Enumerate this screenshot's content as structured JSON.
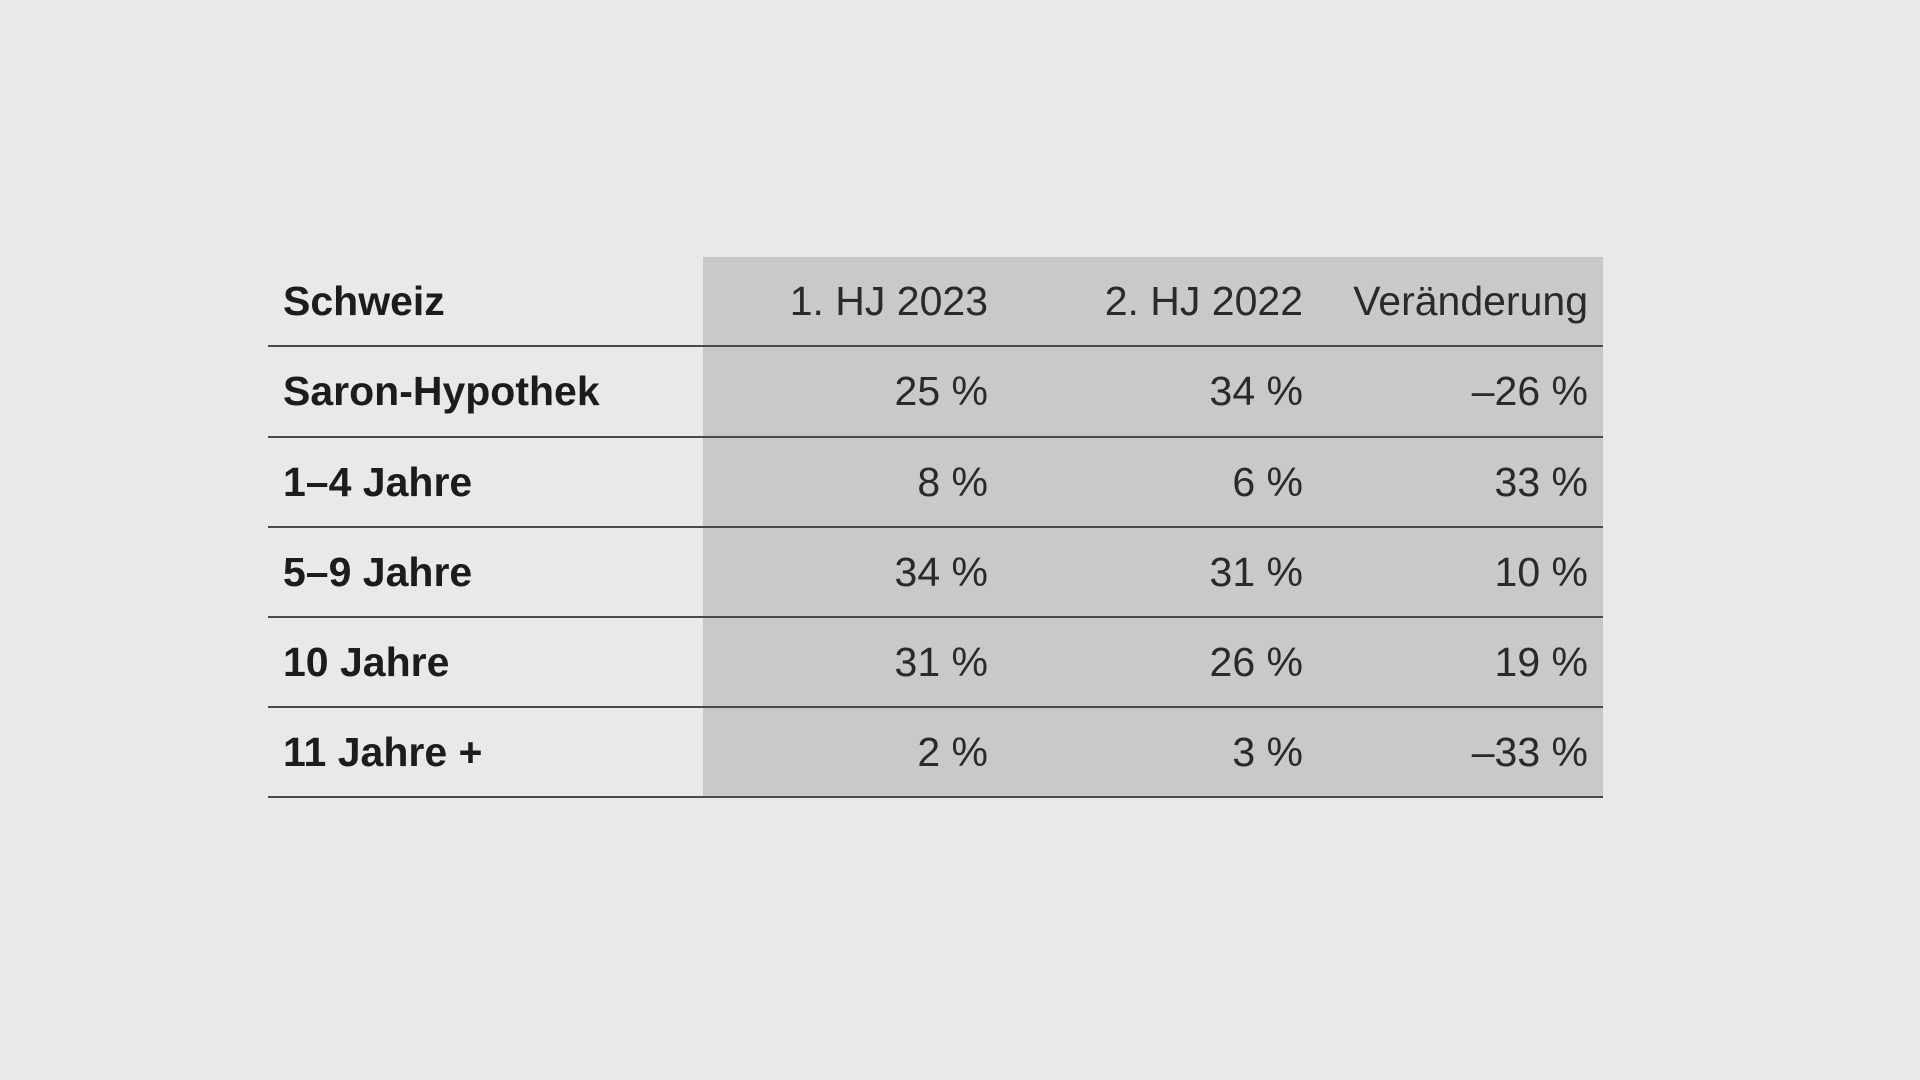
{
  "chart_data": {
    "type": "table",
    "title": "",
    "row_header_label": "Schweiz",
    "columns": [
      "1. HJ 2023",
      "2. HJ 2022",
      "Veränderung"
    ],
    "rows": [
      {
        "label": "Saron-Hypothek",
        "cells": [
          "25 %",
          "34 %",
          "–26 %"
        ]
      },
      {
        "label": "1–4 Jahre",
        "cells": [
          "8 %",
          "6 %",
          "33 %"
        ]
      },
      {
        "label": "5–9 Jahre",
        "cells": [
          "34 %",
          "31 %",
          "10 %"
        ]
      },
      {
        "label": "10 Jahre",
        "cells": [
          "31 %",
          "26 %",
          "19 %"
        ]
      },
      {
        "label": "11 Jahre +",
        "cells": [
          "2 %",
          "3 %",
          "–33 %"
        ]
      }
    ],
    "values": {
      "1. HJ 2023": [
        25,
        8,
        34,
        31,
        2
      ],
      "2. HJ 2022": [
        34,
        6,
        31,
        26,
        3
      ],
      "Veränderung": [
        -26,
        33,
        10,
        19,
        -33
      ]
    }
  },
  "colors": {
    "background": "#e8e9eb",
    "shaded_columns": "#c8c9cb",
    "rule": "#4a4a4a",
    "text": "#1c1c1c"
  }
}
